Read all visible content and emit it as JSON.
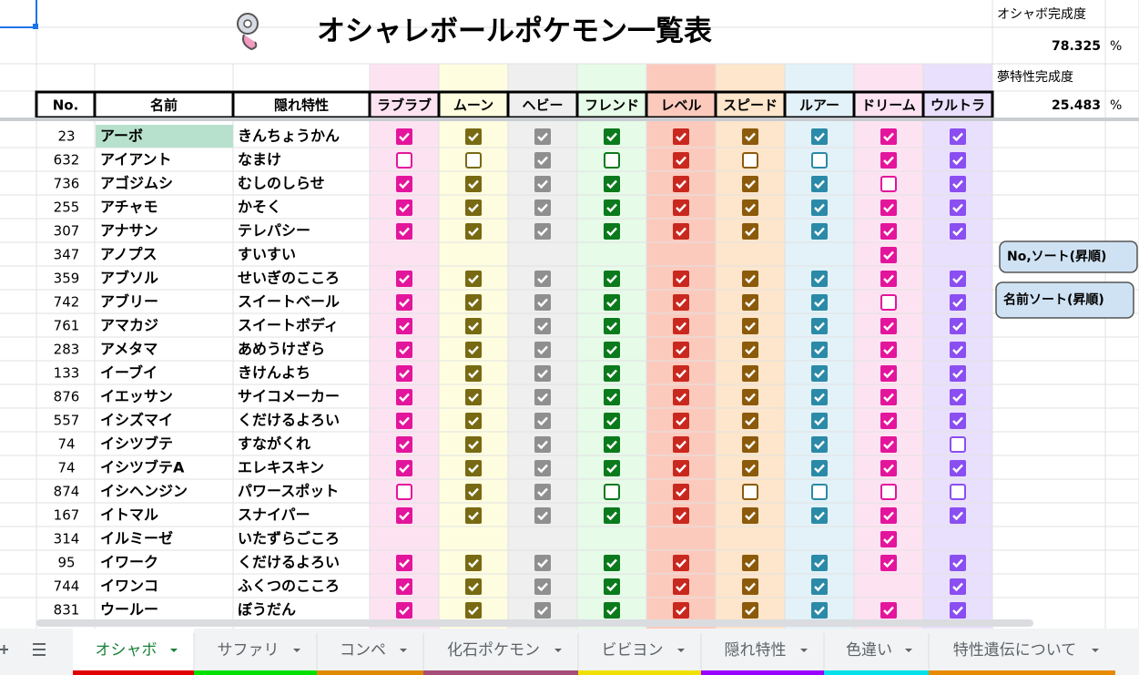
{
  "title": "オシャレボールポケモン一覧表",
  "summary": {
    "oshabo_label": "オシャボ完成度",
    "oshabo_value": 78.325,
    "oshabo_unit": "%",
    "dream_label": "夢特性完成度",
    "dream_value": 25.483,
    "dream_unit": "%"
  },
  "table": {
    "headers": [
      "No.",
      "名前",
      "隠れ特性",
      "ラブラブ",
      "ムーン",
      "ヘビー",
      "フレンド",
      "レベル",
      "スピード",
      "ルアー",
      "ドリーム",
      "ウルトラ"
    ],
    "rows": [
      {
        "no": 23,
        "name": "アーボ",
        "ability": "きんちょうかん",
        "balls": [
          true,
          true,
          true,
          true,
          true,
          true,
          true,
          true,
          true
        ]
      },
      {
        "no": 632,
        "name": "アイアント",
        "ability": "なまけ",
        "balls": [
          false,
          false,
          true,
          false,
          true,
          false,
          false,
          true,
          true
        ]
      },
      {
        "no": 736,
        "name": "アゴジムシ",
        "ability": "むしのしらせ",
        "balls": [
          true,
          true,
          true,
          true,
          true,
          true,
          true,
          false,
          true
        ]
      },
      {
        "no": 255,
        "name": "アチャモ",
        "ability": "かそく",
        "balls": [
          true,
          true,
          true,
          true,
          true,
          true,
          true,
          true,
          true
        ]
      },
      {
        "no": 307,
        "name": "アナサン",
        "ability": "テレパシー",
        "balls": [
          true,
          true,
          true,
          true,
          true,
          true,
          true,
          true,
          true
        ]
      },
      {
        "no": 347,
        "name": "アノプス",
        "ability": "すいすい",
        "balls": [
          null,
          null,
          null,
          null,
          null,
          null,
          null,
          true,
          null
        ]
      },
      {
        "no": 359,
        "name": "アブソル",
        "ability": "せいぎのこころ",
        "balls": [
          true,
          true,
          true,
          true,
          true,
          true,
          true,
          true,
          true
        ]
      },
      {
        "no": 742,
        "name": "アブリー",
        "ability": "スイートベール",
        "balls": [
          true,
          true,
          true,
          true,
          true,
          true,
          true,
          false,
          true
        ]
      },
      {
        "no": 761,
        "name": "アマカジ",
        "ability": "スイートボディ",
        "balls": [
          true,
          true,
          true,
          true,
          true,
          true,
          true,
          true,
          true
        ]
      },
      {
        "no": 283,
        "name": "アメタマ",
        "ability": "あめうけざら",
        "balls": [
          true,
          true,
          true,
          true,
          true,
          true,
          true,
          true,
          true
        ]
      },
      {
        "no": 133,
        "name": "イーブイ",
        "ability": "きけんよち",
        "balls": [
          true,
          true,
          true,
          true,
          true,
          true,
          true,
          true,
          true
        ]
      },
      {
        "no": 876,
        "name": "イエッサン",
        "ability": "サイコメーカー",
        "balls": [
          true,
          true,
          true,
          true,
          true,
          true,
          true,
          true,
          true
        ]
      },
      {
        "no": 557,
        "name": "イシズマイ",
        "ability": "くだけるよろい",
        "balls": [
          true,
          true,
          true,
          true,
          true,
          true,
          true,
          true,
          true
        ]
      },
      {
        "no": 74,
        "name": "イシツブテ",
        "ability": "すながくれ",
        "balls": [
          true,
          true,
          true,
          true,
          true,
          true,
          true,
          true,
          false
        ]
      },
      {
        "no": 74,
        "name": "イシツブテA",
        "ability": "エレキスキン",
        "balls": [
          true,
          true,
          true,
          true,
          true,
          true,
          true,
          true,
          true
        ]
      },
      {
        "no": 874,
        "name": "イシヘンジン",
        "ability": "パワースポット",
        "balls": [
          false,
          true,
          true,
          false,
          true,
          false,
          false,
          false,
          false
        ]
      },
      {
        "no": 167,
        "name": "イトマル",
        "ability": "スナイパー",
        "balls": [
          true,
          true,
          true,
          true,
          true,
          true,
          true,
          true,
          true
        ]
      },
      {
        "no": 314,
        "name": "イルミーゼ",
        "ability": "いたずらごころ",
        "balls": [
          null,
          null,
          null,
          null,
          null,
          null,
          null,
          true,
          null
        ]
      },
      {
        "no": 95,
        "name": "イワーク",
        "ability": "くだけるよろい",
        "balls": [
          true,
          true,
          true,
          true,
          true,
          true,
          true,
          true,
          true
        ]
      },
      {
        "no": 744,
        "name": "イワンコ",
        "ability": "ふくつのこころ",
        "balls": [
          true,
          true,
          true,
          true,
          true,
          true,
          true,
          null,
          true
        ]
      },
      {
        "no": 831,
        "name": "ウールー",
        "ability": "ぼうだん",
        "balls": [
          true,
          true,
          true,
          true,
          true,
          true,
          true,
          true,
          true
        ]
      }
    ]
  },
  "buttons": [
    "No,ソート(昇順)",
    "名前ソート(昇順)"
  ],
  "tabs": [
    "オシャボ",
    "サファリ",
    "コンペ",
    "化石ポケモン",
    "ビビヨン",
    "隠れ特性",
    "色違い",
    "特性遺伝について"
  ]
}
